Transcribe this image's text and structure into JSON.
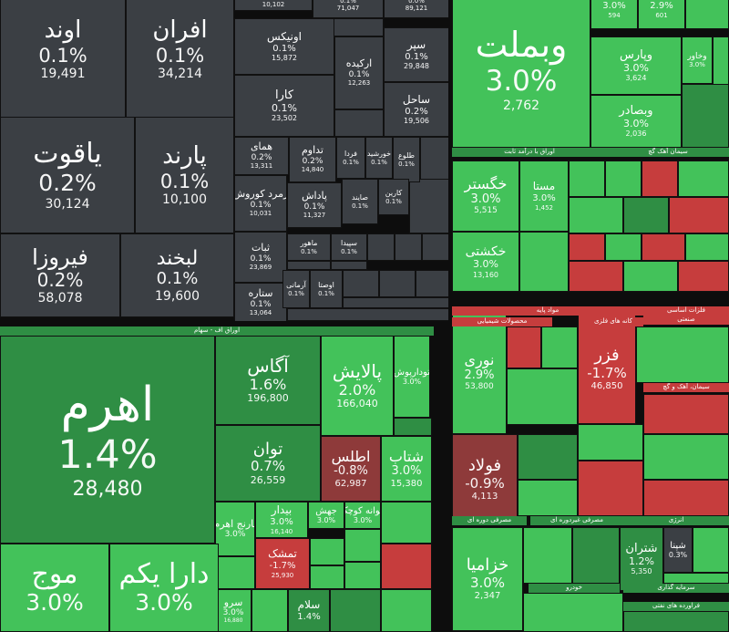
{
  "chart_data": {
    "type": "heatmap",
    "subtype": "treemap",
    "change_unit": "%",
    "color_scale": {
      "flat": "#3b3f44",
      "up_light": "#43c25a",
      "up_dark": "#2f8e44",
      "down": "#c63d3d",
      "down_dark": "#8e3a3a"
    },
    "sector_headers": [
      {
        "label": "اوراق با درآمد ثابت",
        "color": "#2f8e44"
      },
      {
        "label": "سیمان آهک گچ",
        "color": "#2f8e44"
      },
      {
        "label": "اوراق اف - سهام",
        "color": "#2f8e44"
      },
      {
        "label": "مواد پایه",
        "color": "#c63d3d"
      },
      {
        "label": "فلزات اساسی",
        "color": "#c63d3d"
      },
      {
        "label": "صنعتی",
        "color": "#c63d3d"
      },
      {
        "label": "محصولات شیمیایی",
        "color": "#c63d3d"
      },
      {
        "label": "کانه های فلزی",
        "color": "#c63d3d"
      },
      {
        "label": "سیمان، آهک و گچ",
        "color": "#c63d3d"
      },
      {
        "label": "مصرفی دوره ای",
        "color": "#2f8e44"
      },
      {
        "label": "مصرفی غیردوره ای",
        "color": "#2f8e44"
      },
      {
        "label": "انرژی",
        "color": "#2f8e44"
      },
      {
        "label": "خودرو",
        "color": "#2f8e44"
      },
      {
        "label": "سرمایه گذاری",
        "color": "#2f8e44"
      },
      {
        "label": "فراورده های نفتی",
        "color": "#2f8e44"
      }
    ],
    "tiles": [
      {
        "name": "اوند",
        "change": 0.1,
        "value": "19,491"
      },
      {
        "name": "افران",
        "change": 0.1,
        "value": "34,214"
      },
      {
        "name": "",
        "change": 0.0,
        "value": "10,102"
      },
      {
        "name": "",
        "change": 0.1,
        "value": "71,047"
      },
      {
        "name": "",
        "change": 0.0,
        "value": "89,121"
      },
      {
        "name": "اونیکس",
        "change": 0.1,
        "value": "15,872"
      },
      {
        "name": "سپر",
        "change": 0.1,
        "value": "29,848"
      },
      {
        "name": "ارکیده",
        "change": 0.1,
        "value": "12,263"
      },
      {
        "name": "کارا",
        "change": 0.1,
        "value": "23,502"
      },
      {
        "name": "ساحل",
        "change": 0.2,
        "value": "19,506"
      },
      {
        "name": "یاقوت",
        "change": 0.2,
        "value": "30,124"
      },
      {
        "name": "پارند",
        "change": 0.1,
        "value": "10,100"
      },
      {
        "name": "همای",
        "change": 0.2,
        "value": "13,311"
      },
      {
        "name": "تداوم",
        "change": 0.2,
        "value": "14,840"
      },
      {
        "name": "فردا",
        "change": 0.1,
        "value": ""
      },
      {
        "name": "خورشید",
        "change": 0.1,
        "value": ""
      },
      {
        "name": "طلوع",
        "change": 0.1,
        "value": ""
      },
      {
        "name": "زمرد کوروش",
        "change": 0.1,
        "value": "10,031"
      },
      {
        "name": "پاداش",
        "change": 0.1,
        "value": "11,327"
      },
      {
        "name": "صایند",
        "change": 0.1,
        "value": ""
      },
      {
        "name": "کارین",
        "change": 0.1,
        "value": ""
      },
      {
        "name": "ثبات",
        "change": 0.1,
        "value": "23,869"
      },
      {
        "name": "ماهور",
        "change": 0.1,
        "value": ""
      },
      {
        "name": "سپیدا",
        "change": 0.1,
        "value": ""
      },
      {
        "name": "فیروزا",
        "change": 0.2,
        "value": "58,078"
      },
      {
        "name": "لبخند",
        "change": 0.1,
        "value": "19,600"
      },
      {
        "name": "ستاره",
        "change": 0.1,
        "value": "13,064"
      },
      {
        "name": "آرمانی",
        "change": 0.1,
        "value": ""
      },
      {
        "name": "اوصتا",
        "change": 0.1,
        "value": ""
      },
      {
        "name": "اهرم",
        "change": 1.4,
        "value": "28,480"
      },
      {
        "name": "آگاس",
        "change": 1.6,
        "value": "196,800"
      },
      {
        "name": "پالایش",
        "change": 2.0,
        "value": "166,040"
      },
      {
        "name": "تودارپوش",
        "change": 3.0,
        "value": ""
      },
      {
        "name": "توان",
        "change": 0.7,
        "value": "26,559"
      },
      {
        "name": "اطلس",
        "change": -0.8,
        "value": "62,987"
      },
      {
        "name": "شتاب",
        "change": 3.0,
        "value": "15,380"
      },
      {
        "name": "نارنج اهرم",
        "change": 3.0,
        "value": ""
      },
      {
        "name": "بیدار",
        "change": 3.0,
        "value": "16,140"
      },
      {
        "name": "جهش",
        "change": 3.0,
        "value": ""
      },
      {
        "name": "جوانه کوچک",
        "change": 3.0,
        "value": ""
      },
      {
        "name": "تمشک",
        "change": -1.7,
        "value": "25,930"
      },
      {
        "name": "سرو",
        "change": 3.0,
        "value": "16,880"
      },
      {
        "name": "سلام",
        "change": 1.4,
        "value": ""
      },
      {
        "name": "موج",
        "change": 3.0,
        "value": ""
      },
      {
        "name": "دارا یکم",
        "change": 3.0,
        "value": ""
      },
      {
        "name": "وبملت",
        "change": 3.0,
        "value": "2,762"
      },
      {
        "name": "",
        "change": 3.0,
        "value": "594"
      },
      {
        "name": "",
        "change": 2.9,
        "value": "601"
      },
      {
        "name": "وپارس",
        "change": 3.0,
        "value": "3,624"
      },
      {
        "name": "وخاور",
        "change": 3.0,
        "value": ""
      },
      {
        "name": "وبصادر",
        "change": 3.0,
        "value": "2,036"
      },
      {
        "name": "خگستر",
        "change": 3.0,
        "value": "5,515"
      },
      {
        "name": "مستا",
        "change": 3.0,
        "value": "1,452"
      },
      {
        "name": "خکشتی",
        "change": 3.0,
        "value": "13,160"
      },
      {
        "name": "نوری",
        "change": 2.9,
        "value": "53,800"
      },
      {
        "name": "فزر",
        "change": -1.7,
        "value": "46,850"
      },
      {
        "name": "فولاد",
        "change": -0.9,
        "value": "4,113"
      },
      {
        "name": "خزامیا",
        "change": 3.0,
        "value": "2,347"
      },
      {
        "name": "شتران",
        "change": 1.2,
        "value": "5,350"
      },
      {
        "name": "شپنا",
        "change": 0.3,
        "value": ""
      }
    ]
  }
}
